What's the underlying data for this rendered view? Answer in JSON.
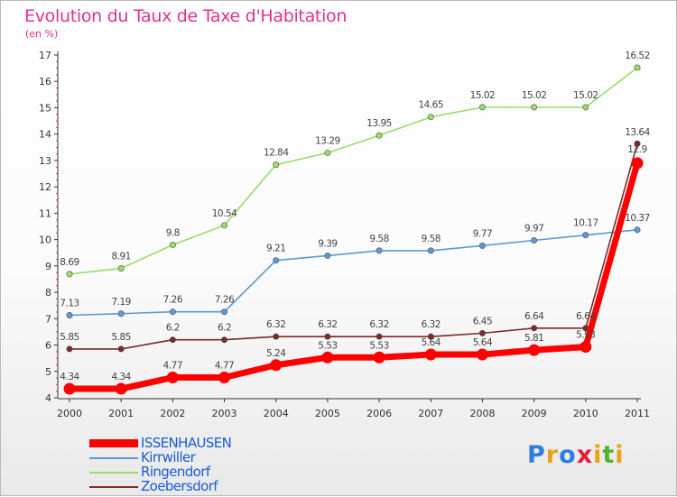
{
  "title": "Evolution du Taux de Taxe d'Habitation",
  "subtitle": "(en %)",
  "logo": {
    "letters": [
      "P",
      "r",
      "o",
      "x",
      "i",
      "t",
      "i"
    ],
    "colors": [
      "#2e7de0",
      "#e8a317",
      "#2e7de0",
      "#e0203a",
      "#e8a317",
      "#52b332",
      "#e8a317"
    ]
  },
  "chart_data": {
    "type": "line",
    "x": [
      "2000",
      "2001",
      "2002",
      "2003",
      "2004",
      "2005",
      "2006",
      "2007",
      "2008",
      "2009",
      "2010",
      "2011"
    ],
    "ylim": [
      4,
      17
    ],
    "yticks": [
      "4",
      "5",
      "6",
      "7",
      "8",
      "9",
      "10",
      "11",
      "12",
      "13",
      "14",
      "15",
      "16",
      "17"
    ],
    "grid": false,
    "legend": "bottom-left",
    "series": [
      {
        "name": "ISSENHAUSEN",
        "color": "#ff0000",
        "values": [
          4.34,
          4.34,
          4.77,
          4.77,
          5.24,
          5.53,
          5.53,
          5.64,
          5.64,
          5.81,
          5.93,
          12.9
        ],
        "labels": [
          "4.34",
          "4.34",
          "4.77",
          "4.77",
          "5.24",
          "5.53",
          "5.53",
          "5.64",
          "5.64",
          "5.81",
          "5.93",
          "12.9"
        ]
      },
      {
        "name": "Kirrwiller",
        "color": "#5d9ad1",
        "values": [
          7.13,
          7.19,
          7.26,
          7.26,
          9.21,
          9.39,
          9.58,
          9.58,
          9.77,
          9.97,
          10.17,
          10.37
        ],
        "labels": [
          "7.13",
          "7.19",
          "7.26",
          "7.26",
          "9.21",
          "9.39",
          "9.58",
          "9.58",
          "9.77",
          "9.97",
          "10.17",
          "10.37"
        ]
      },
      {
        "name": "Ringendorf",
        "color": "#9bdc6a",
        "values": [
          8.69,
          8.91,
          9.8,
          10.54,
          12.84,
          13.29,
          13.95,
          14.65,
          15.02,
          15.02,
          15.02,
          16.52
        ],
        "labels": [
          "8.69",
          "8.91",
          "9.8",
          "10.54",
          "12.84",
          "13.29",
          "13.95",
          "14.65",
          "15.02",
          "15.02",
          "15.02",
          "16.52"
        ]
      },
      {
        "name": "Zoebersdorf",
        "color": "#7a2a2a",
        "values": [
          5.85,
          5.85,
          6.2,
          6.2,
          6.32,
          6.32,
          6.32,
          6.32,
          6.45,
          6.64,
          6.64,
          13.64
        ],
        "labels": [
          "5.85",
          "5.85",
          "6.2",
          "6.2",
          "6.32",
          "6.32",
          "6.32",
          "6.32",
          "6.45",
          "6.64",
          "6.64",
          "13.64"
        ]
      }
    ]
  }
}
